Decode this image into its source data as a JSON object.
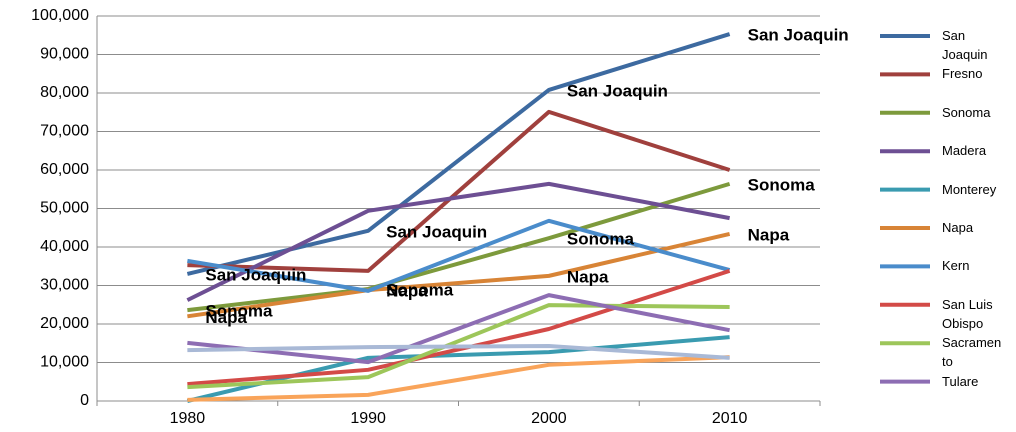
{
  "chart_data": {
    "type": "line",
    "categories": [
      "1980",
      "1990",
      "2000",
      "2010"
    ],
    "ylim": [
      0,
      100000
    ],
    "yticks": [
      {
        "value": 0,
        "label": "0"
      },
      {
        "value": 10000,
        "label": "10,000"
      },
      {
        "value": 20000,
        "label": "20,000"
      },
      {
        "value": 30000,
        "label": "30,000"
      },
      {
        "value": 40000,
        "label": "40,000"
      },
      {
        "value": 50000,
        "label": "50,000"
      },
      {
        "value": 60000,
        "label": "60,000"
      },
      {
        "value": 70000,
        "label": "70,000"
      },
      {
        "value": 80000,
        "label": "80,000"
      },
      {
        "value": 90000,
        "label": "90,000"
      },
      {
        "value": 100000,
        "label": "100,000"
      }
    ],
    "grid": true,
    "legend": "right",
    "series": [
      {
        "name": "San Joaquin",
        "color": "#3d6aa0",
        "values": [
          33000,
          44200,
          80800,
          95300
        ],
        "data_labels": [
          "San Joaquin",
          "San Joaquin",
          "San Joaquin",
          "San Joaquin"
        ]
      },
      {
        "name": "Fresno",
        "color": "#a0403d",
        "values": [
          35300,
          33800,
          75100,
          60000
        ]
      },
      {
        "name": "Sonoma",
        "color": "#7d9a3c",
        "values": [
          23600,
          29100,
          42300,
          56400
        ],
        "data_labels": [
          "Sonoma",
          "Sonoma",
          "Sonoma",
          "Sonoma"
        ]
      },
      {
        "name": "Madera",
        "color": "#6d4f93",
        "values": [
          26200,
          49400,
          56400,
          47500
        ]
      },
      {
        "name": "Monterey",
        "color": "#3a9bb0",
        "values": [
          0,
          11200,
          12700,
          16600
        ]
      },
      {
        "name": "Napa",
        "color": "#d88436",
        "values": [
          22000,
          28800,
          32500,
          43400
        ],
        "data_labels": [
          "Napa",
          "Napa",
          "Napa",
          "Napa"
        ]
      },
      {
        "name": "Kern",
        "color": "#4a8ccb",
        "values": [
          36400,
          28600,
          46800,
          34000
        ]
      },
      {
        "name": "San Luis Obispo",
        "color": "#d34a47",
        "values": [
          4400,
          8100,
          18700,
          33800
        ]
      },
      {
        "name": "Sacramento",
        "color": "#9dc65a",
        "values": [
          3600,
          6200,
          24900,
          24400
        ]
      },
      {
        "name": "Tulare",
        "color": "#8d6db3",
        "values": [
          15100,
          10100,
          27500,
          18400
        ]
      },
      {
        "color": "#f9a45a",
        "values": [
          300,
          1600,
          9400,
          11400
        ]
      },
      {
        "color": "#a9b9d6",
        "values": [
          13200,
          14000,
          14300,
          11200
        ]
      }
    ]
  }
}
